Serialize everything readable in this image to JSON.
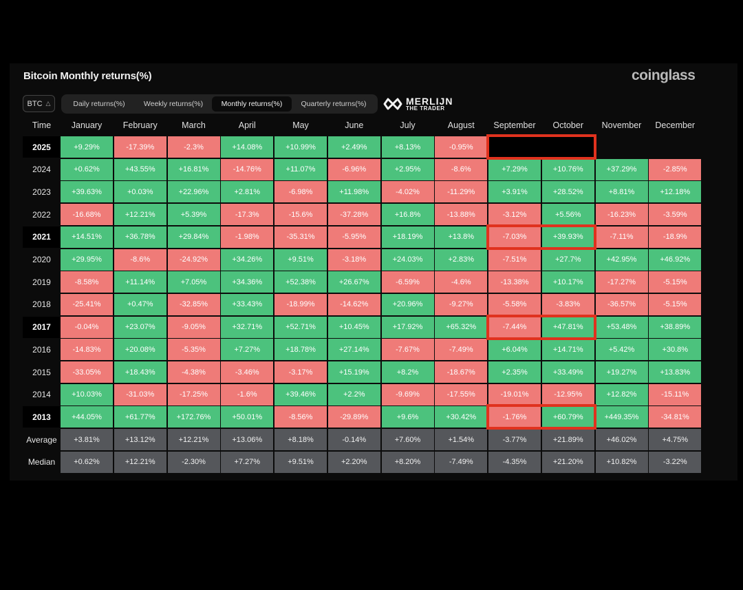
{
  "header": {
    "title": "Bitcoin Monthly returns(%)",
    "brand": "coinglass",
    "coin": "BTC",
    "tabs": [
      "Daily returns(%)",
      "Weekly returns(%)",
      "Monthly returns(%)",
      "Quarterly returns(%)"
    ],
    "active_tab": "Monthly returns(%)",
    "watermark_main": "MERLIJN",
    "watermark_sub": "THE TRADER"
  },
  "colors": {
    "positive": "#4cc27d",
    "negative": "#ef7b78",
    "summary": "#55575b",
    "highlight": "#e0321e"
  },
  "chart_data": {
    "type": "heatmap",
    "title": "Bitcoin Monthly returns(%)",
    "row_header": "Time",
    "columns": [
      "January",
      "February",
      "March",
      "April",
      "May",
      "June",
      "July",
      "August",
      "September",
      "October",
      "November",
      "December"
    ],
    "rows": [
      {
        "year": "2025",
        "values": [
          "+9.29%",
          "-17.39%",
          "-2.3%",
          "+14.08%",
          "+10.99%",
          "+2.49%",
          "+8.13%",
          "-0.95%",
          null,
          null,
          null,
          null
        ]
      },
      {
        "year": "2024",
        "values": [
          "+0.62%",
          "+43.55%",
          "+16.81%",
          "-14.76%",
          "+11.07%",
          "-6.96%",
          "+2.95%",
          "-8.6%",
          "+7.29%",
          "+10.76%",
          "+37.29%",
          "-2.85%"
        ]
      },
      {
        "year": "2023",
        "values": [
          "+39.63%",
          "+0.03%",
          "+22.96%",
          "+2.81%",
          "-6.98%",
          "+11.98%",
          "-4.02%",
          "-11.29%",
          "+3.91%",
          "+28.52%",
          "+8.81%",
          "+12.18%"
        ]
      },
      {
        "year": "2022",
        "values": [
          "-16.68%",
          "+12.21%",
          "+5.39%",
          "-17.3%",
          "-15.6%",
          "-37.28%",
          "+16.8%",
          "-13.88%",
          "-3.12%",
          "+5.56%",
          "-16.23%",
          "-3.59%"
        ]
      },
      {
        "year": "2021",
        "values": [
          "+14.51%",
          "+36.78%",
          "+29.84%",
          "-1.98%",
          "-35.31%",
          "-5.95%",
          "+18.19%",
          "+13.8%",
          "-7.03%",
          "+39.93%",
          "-7.11%",
          "-18.9%"
        ]
      },
      {
        "year": "2020",
        "values": [
          "+29.95%",
          "-8.6%",
          "-24.92%",
          "+34.26%",
          "+9.51%",
          "-3.18%",
          "+24.03%",
          "+2.83%",
          "-7.51%",
          "+27.7%",
          "+42.95%",
          "+46.92%"
        ]
      },
      {
        "year": "2019",
        "values": [
          "-8.58%",
          "+11.14%",
          "+7.05%",
          "+34.36%",
          "+52.38%",
          "+26.67%",
          "-6.59%",
          "-4.6%",
          "-13.38%",
          "+10.17%",
          "-17.27%",
          "-5.15%"
        ]
      },
      {
        "year": "2018",
        "values": [
          "-25.41%",
          "+0.47%",
          "-32.85%",
          "+33.43%",
          "-18.99%",
          "-14.62%",
          "+20.96%",
          "-9.27%",
          "-5.58%",
          "-3.83%",
          "-36.57%",
          "-5.15%"
        ]
      },
      {
        "year": "2017",
        "values": [
          "-0.04%",
          "+23.07%",
          "-9.05%",
          "+32.71%",
          "+52.71%",
          "+10.45%",
          "+17.92%",
          "+65.32%",
          "-7.44%",
          "+47.81%",
          "+53.48%",
          "+38.89%"
        ]
      },
      {
        "year": "2016",
        "values": [
          "-14.83%",
          "+20.08%",
          "-5.35%",
          "+7.27%",
          "+18.78%",
          "+27.14%",
          "-7.67%",
          "-7.49%",
          "+6.04%",
          "+14.71%",
          "+5.42%",
          "+30.8%"
        ]
      },
      {
        "year": "2015",
        "values": [
          "-33.05%",
          "+18.43%",
          "-4.38%",
          "-3.46%",
          "-3.17%",
          "+15.19%",
          "+8.2%",
          "-18.67%",
          "+2.35%",
          "+33.49%",
          "+19.27%",
          "+13.83%"
        ]
      },
      {
        "year": "2014",
        "values": [
          "+10.03%",
          "-31.03%",
          "-17.25%",
          "-1.6%",
          "+39.46%",
          "+2.2%",
          "-9.69%",
          "-17.55%",
          "-19.01%",
          "-12.95%",
          "+12.82%",
          "-15.11%"
        ]
      },
      {
        "year": "2013",
        "values": [
          "+44.05%",
          "+61.77%",
          "+172.76%",
          "+50.01%",
          "-8.56%",
          "-29.89%",
          "+9.6%",
          "+30.42%",
          "-1.76%",
          "+60.79%",
          "+449.35%",
          "-34.81%"
        ]
      }
    ],
    "summary": [
      {
        "label": "Average",
        "values": [
          "+3.81%",
          "+13.12%",
          "+12.21%",
          "+13.06%",
          "+8.18%",
          "-0.14%",
          "+7.60%",
          "+1.54%",
          "-3.77%",
          "+21.89%",
          "+46.02%",
          "+4.75%"
        ]
      },
      {
        "label": "Median",
        "values": [
          "+0.62%",
          "+12.21%",
          "-2.30%",
          "+7.27%",
          "+9.51%",
          "+2.20%",
          "+8.20%",
          "-7.49%",
          "-4.35%",
          "+21.20%",
          "+10.82%",
          "-3.22%"
        ]
      }
    ],
    "highlighted_years": [
      "2025",
      "2021",
      "2017",
      "2013"
    ],
    "highlighted_cells": [
      {
        "year": "2025",
        "months": [
          "September",
          "October"
        ],
        "blanked": true
      },
      {
        "year": "2021",
        "months": [
          "September",
          "October"
        ]
      },
      {
        "year": "2017",
        "months": [
          "September",
          "October"
        ]
      },
      {
        "year": "2013",
        "months": [
          "September",
          "October"
        ]
      }
    ]
  }
}
